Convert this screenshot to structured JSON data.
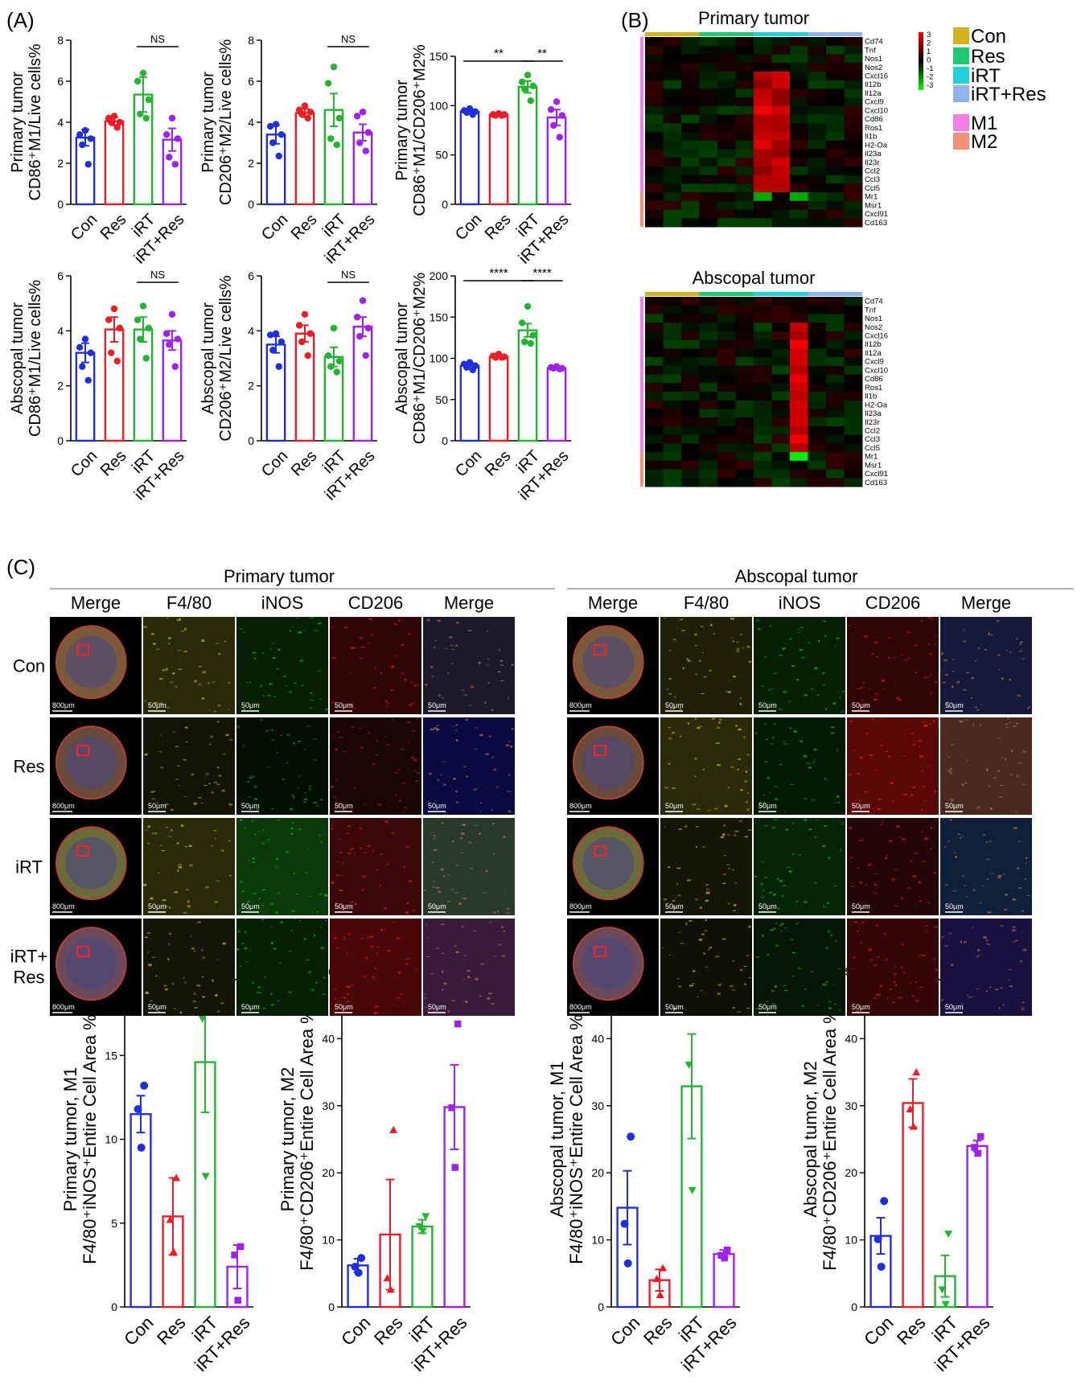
{
  "panel_labels": {
    "a": "(A)",
    "b": "(B)",
    "c": "(C)"
  },
  "groups": [
    "Con",
    "Res",
    "iRT",
    "iRT+Res"
  ],
  "colors": {
    "Con": "#1f2fe0",
    "Res": "#ee1c24",
    "iRT": "#22b530",
    "iRT+Res": "#a020f0"
  },
  "chart_data": [
    {
      "type": "bar",
      "id": "a1",
      "ylabel_lines": [
        "Primary tumor",
        "CD86⁺M1/Live cells%"
      ],
      "categories": [
        "Con",
        "Res",
        "iRT",
        "iRT+Res"
      ],
      "values": [
        3.25,
        4.05,
        5.35,
        3.15
      ],
      "errors": [
        0.4,
        0.2,
        0.85,
        0.55
      ],
      "points": [
        [
          3.6,
          3.4,
          3.2,
          2.9,
          1.95
        ],
        [
          4.3,
          4.2,
          4.0,
          4.0,
          3.75
        ],
        [
          6.4,
          6.0,
          5.1,
          4.4,
          4.2
        ],
        [
          4.2,
          3.4,
          3.2,
          2.3,
          1.95
        ]
      ],
      "ylim": [
        0,
        8
      ],
      "yticks": [
        0,
        2,
        4,
        6,
        8
      ],
      "sig": [
        {
          "from": 2,
          "to": 3,
          "label": "NS"
        }
      ]
    },
    {
      "type": "bar",
      "id": "a2",
      "ylabel_lines": [
        "Primary tumor",
        "CD206⁺M2/Live cells%"
      ],
      "categories": [
        "Con",
        "Res",
        "iRT",
        "iRT+Res"
      ],
      "values": [
        3.4,
        4.45,
        4.6,
        3.5
      ],
      "errors": [
        0.45,
        0.2,
        0.8,
        0.4
      ],
      "points": [
        [
          3.9,
          3.8,
          3.4,
          3.0,
          2.35
        ],
        [
          4.8,
          4.6,
          4.5,
          4.4,
          4.2
        ],
        [
          6.7,
          5.9,
          4.2,
          3.2,
          2.9
        ],
        [
          4.5,
          4.3,
          3.5,
          3.0,
          2.6
        ]
      ],
      "ylim": [
        0,
        8
      ],
      "yticks": [
        0,
        2,
        4,
        6,
        8
      ],
      "sig": [
        {
          "from": 2,
          "to": 3,
          "label": "NS"
        }
      ]
    },
    {
      "type": "bar",
      "id": "a3",
      "ylabel_lines": [
        "Primary tumor",
        "CD86⁺M1/CD206⁺M2%"
      ],
      "categories": [
        "Con",
        "Res",
        "iRT",
        "iRT+Res"
      ],
      "values": [
        94,
        91,
        119,
        88
      ],
      "errors": [
        2,
        1,
        6,
        8
      ],
      "points": [
        [
          97,
          95,
          94,
          93,
          91
        ],
        [
          92,
          91,
          91,
          90,
          90
        ],
        [
          131,
          124,
          120,
          117,
          105
        ],
        [
          104,
          96,
          90,
          80,
          68
        ]
      ],
      "ylim": [
        0,
        150
      ],
      "yticks": [
        0,
        50,
        100,
        150
      ],
      "sig": [
        {
          "from": 0,
          "to": 2,
          "label": "**"
        },
        {
          "from": 2,
          "to": 3,
          "label": "**"
        }
      ]
    },
    {
      "type": "bar",
      "id": "a4",
      "ylabel_lines": [
        "Abscopal tumor",
        "CD86⁺M1/Live cells%"
      ],
      "categories": [
        "Con",
        "Res",
        "iRT",
        "iRT+Res"
      ],
      "values": [
        3.2,
        4.05,
        4.05,
        3.65
      ],
      "errors": [
        0.35,
        0.45,
        0.45,
        0.35
      ],
      "points": [
        [
          3.7,
          3.4,
          3.2,
          2.7,
          2.2
        ],
        [
          4.8,
          4.4,
          4.1,
          3.2,
          2.9
        ],
        [
          4.9,
          4.4,
          4.1,
          3.7,
          3.0
        ],
        [
          4.6,
          3.9,
          3.7,
          3.5,
          2.7
        ]
      ],
      "ylim": [
        0,
        6
      ],
      "yticks": [
        0,
        2,
        4,
        6
      ],
      "sig": [
        {
          "from": 2,
          "to": 3,
          "label": "NS"
        }
      ]
    },
    {
      "type": "bar",
      "id": "a5",
      "ylabel_lines": [
        "Abscopal tumor",
        "CD206⁺M2/Live cells%"
      ],
      "categories": [
        "Con",
        "Res",
        "iRT",
        "iRT+Res"
      ],
      "values": [
        3.5,
        3.9,
        3.05,
        4.15
      ],
      "errors": [
        0.3,
        0.3,
        0.35,
        0.35
      ],
      "points": [
        [
          3.9,
          3.85,
          3.6,
          3.3,
          2.7
        ],
        [
          4.6,
          4.2,
          3.9,
          3.6,
          3.1
        ],
        [
          4.1,
          3.1,
          2.9,
          2.7,
          2.5
        ],
        [
          5.1,
          4.5,
          4.1,
          3.8,
          3.1
        ]
      ],
      "ylim": [
        0,
        6
      ],
      "yticks": [
        0,
        2,
        4,
        6
      ],
      "sig": [
        {
          "from": 2,
          "to": 3,
          "label": "NS"
        }
      ]
    },
    {
      "type": "bar",
      "id": "a6",
      "ylabel_lines": [
        "Abscopal tumor",
        "CD86⁺M1/CD206⁺M2%"
      ],
      "categories": [
        "Con",
        "Res",
        "iRT",
        "iRT+Res"
      ],
      "values": [
        91,
        102,
        134,
        88
      ],
      "errors": [
        3,
        1.5,
        8,
        1
      ],
      "points": [
        [
          95,
          93,
          91,
          89,
          86
        ],
        [
          105,
          103,
          102,
          101,
          101
        ],
        [
          163,
          143,
          128,
          120,
          118
        ],
        [
          90,
          89,
          88,
          88,
          87
        ]
      ],
      "ylim": [
        0,
        200
      ],
      "yticks": [
        0,
        50,
        100,
        150,
        200
      ],
      "sig": [
        {
          "from": 0,
          "to": 2,
          "label": "****"
        },
        {
          "from": 2,
          "to": 3,
          "label": "****"
        }
      ]
    },
    {
      "type": "bar",
      "id": "c1",
      "ylabel_lines": [
        "Primary tumor, M1",
        "F4/80⁺iNOS⁺Entire Cell Area %"
      ],
      "categories": [
        "Con",
        "Res",
        "iRT",
        "iRT+Res"
      ],
      "values": [
        11.5,
        5.4,
        14.6,
        2.4
      ],
      "errors": [
        1.1,
        2.3,
        3.0,
        1.3
      ],
      "points": [
        [
          13.2,
          11.8,
          9.5
        ],
        [
          7.7,
          5.2,
          3.3
        ],
        [
          19.6,
          17.2,
          7.8
        ],
        [
          3.6,
          3.1,
          0.4
        ]
      ],
      "markers": [
        "circle",
        "triangle",
        "triangle-down",
        "square"
      ],
      "ylim": [
        0,
        20
      ],
      "yticks": [
        0,
        5,
        10,
        15,
        20
      ],
      "sig": [
        {
          "from": 2,
          "to": 3,
          "label": "*"
        }
      ]
    },
    {
      "type": "bar",
      "id": "c2",
      "ylabel_lines": [
        "Primary tumor, M2",
        "F4/80⁺CD206⁺Entire Cell Area %"
      ],
      "categories": [
        "Con",
        "Res",
        "iRT",
        "iRT+Res"
      ],
      "values": [
        6.2,
        10.8,
        12.0,
        29.8
      ],
      "errors": [
        1.0,
        8.2,
        1.0,
        6.3
      ],
      "points": [
        [
          7.3,
          6.0,
          5.1
        ],
        [
          26.4,
          4.3,
          2.6
        ],
        [
          13.5,
          12.0,
          11.3
        ],
        [
          42.2,
          29.7,
          20.8
        ]
      ],
      "markers": [
        "circle",
        "triangle",
        "triangle-down",
        "square"
      ],
      "ylim": [
        0,
        50
      ],
      "yticks": [
        0,
        10,
        20,
        30,
        40,
        50
      ],
      "sig": []
    },
    {
      "type": "bar",
      "id": "c3",
      "ylabel_lines": [
        "Abscopal tumor, M1",
        "F4/80⁺iNOS⁺Entire Cell Area %"
      ],
      "categories": [
        "Con",
        "Res",
        "iRT",
        "iRT+Res"
      ],
      "values": [
        14.8,
        4.0,
        32.9,
        7.9
      ],
      "errors": [
        5.5,
        1.6,
        7.8,
        0.6
      ],
      "points": [
        [
          25.4,
          12.4,
          6.5
        ],
        [
          5.8,
          4.2,
          1.8
        ],
        [
          45.8,
          36.1,
          17.4
        ],
        [
          8.5,
          7.7,
          7.3
        ]
      ],
      "markers": [
        "circle",
        "triangle",
        "triangle-down",
        "square"
      ],
      "ylim": [
        0,
        50
      ],
      "yticks": [
        0,
        10,
        20,
        30,
        40,
        50
      ],
      "sig": [
        {
          "from": 2,
          "to": 3,
          "label": "*"
        }
      ]
    },
    {
      "type": "bar",
      "id": "c4",
      "ylabel_lines": [
        "Abscopal tumor, M2",
        "F4/80⁺CD206⁺Entire Cell Area %"
      ],
      "categories": [
        "Con",
        "Res",
        "iRT",
        "iRT+Res"
      ],
      "values": [
        10.6,
        30.4,
        4.6,
        24.0
      ],
      "errors": [
        2.7,
        3.6,
        3.1,
        0.8
      ],
      "points": [
        [
          15.8,
          10.1,
          6.0
        ],
        [
          35.0,
          29.5,
          26.9
        ],
        [
          10.9,
          2.6,
          0.4
        ],
        [
          25.4,
          23.8,
          22.9
        ]
      ],
      "markers": [
        "circle",
        "triangle",
        "triangle-down",
        "square"
      ],
      "ylim": [
        0,
        50
      ],
      "yticks": [
        0,
        10,
        20,
        30,
        40,
        50
      ],
      "sig": [
        {
          "from": 2,
          "to": 3,
          "label": "**"
        }
      ]
    }
  ],
  "heatmaps": [
    {
      "title": "Primary tumor",
      "genes": [
        "Cd74",
        "Tnf",
        "Nos1",
        "Nos2",
        "Cxcl16",
        "Il12b",
        "Il12a",
        "Cxcl9",
        "Cxcl10",
        "Cd86",
        "Ros1",
        "Il1b",
        "H2-Oa",
        "Il23a",
        "Il23r",
        "Ccl2",
        "Ccl3",
        "Ccl5",
        "Mr1",
        "Msr1",
        "Cxcl91",
        "Cd163"
      ]
    },
    {
      "title": "Abscopal tumor",
      "genes": [
        "Cd74",
        "Tnf",
        "Nos1",
        "Nos2",
        "Cxcl16",
        "Il12b",
        "Il12a",
        "Cxcl9",
        "Cxcl10",
        "Cd86",
        "Ros1",
        "Il1b",
        "H2-Oa",
        "Il23a",
        "Il23r",
        "Ccl2",
        "Ccl3",
        "Ccl5",
        "Mr1",
        "Msr1",
        "Cxcl91",
        "Cd163"
      ]
    }
  ],
  "colorscale": {
    "ticks": [
      "3",
      "2",
      "1",
      "0",
      "-1",
      "-2",
      "-3"
    ],
    "high": "#ff0000",
    "mid": "#000000",
    "low": "#00ff00"
  },
  "legend": [
    {
      "label": "Con",
      "color": "#d3b21f"
    },
    {
      "label": "Res",
      "color": "#1ecb72"
    },
    {
      "label": "iRT",
      "color": "#1fd2d8"
    },
    {
      "label": "iRT+Res",
      "color": "#8fb4f0"
    },
    {
      "label": "M1",
      "color": "#f47de8"
    },
    {
      "label": "M2",
      "color": "#f4907a"
    }
  ],
  "imaging": {
    "sections": [
      "Primary tumor",
      "Abscopal tumor"
    ],
    "columns": [
      "Merge",
      "F4/80",
      "iNOS",
      "CD206",
      "Merge"
    ],
    "rows": [
      [
        "Con"
      ],
      [
        "Res"
      ],
      [
        "iRT"
      ],
      [
        "iRT+",
        "Res"
      ]
    ],
    "scale_overview": "800μm",
    "scale_zoom": "50μm"
  }
}
